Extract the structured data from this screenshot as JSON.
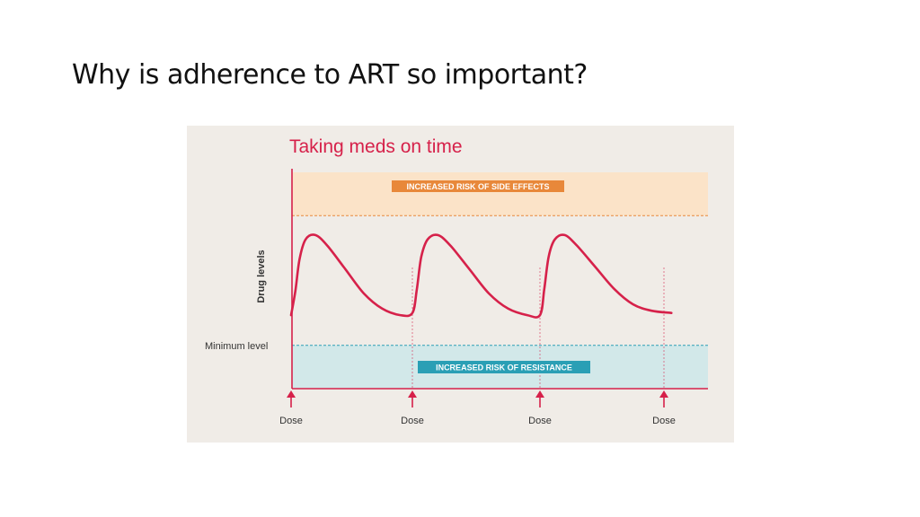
{
  "slide": {
    "title": "Why is adherence to ART so important?"
  },
  "chart_data": {
    "type": "line",
    "title": "Taking meds on time",
    "ylabel": "Drug levels",
    "xlabel": "",
    "dose_label": "Dose",
    "dose_times": [
      0,
      1,
      2,
      3
    ],
    "minimum_level_label": "Minimum level",
    "bands": {
      "side_effects": {
        "label": "INCREASED RISK OF SIDE EFFECTS",
        "color": "#e8883a",
        "fill": "#fbe3c8"
      },
      "resistance": {
        "label": "INCREASED RISK OF RESISTANCE",
        "color": "#2a9fb5",
        "fill": "#d2e8e9"
      }
    },
    "ylim": [
      0,
      1
    ],
    "levels": {
      "minimum": 0.2,
      "side_effect_threshold": 0.8
    },
    "series": [
      {
        "color": "#d6214a",
        "points": [
          [
            0.0,
            0.34
          ],
          [
            0.035,
            0.45
          ],
          [
            0.07,
            0.6
          ],
          [
            0.12,
            0.69
          ],
          [
            0.2,
            0.71
          ],
          [
            0.3,
            0.66
          ],
          [
            0.45,
            0.55
          ],
          [
            0.6,
            0.44
          ],
          [
            0.75,
            0.37
          ],
          [
            0.9,
            0.34
          ],
          [
            1.0,
            0.35
          ],
          [
            1.035,
            0.46
          ],
          [
            1.07,
            0.61
          ],
          [
            1.12,
            0.69
          ],
          [
            1.2,
            0.71
          ],
          [
            1.3,
            0.66
          ],
          [
            1.45,
            0.55
          ],
          [
            1.6,
            0.44
          ],
          [
            1.75,
            0.37
          ],
          [
            1.9,
            0.34
          ],
          [
            2.0,
            0.34
          ],
          [
            2.035,
            0.46
          ],
          [
            2.07,
            0.61
          ],
          [
            2.12,
            0.69
          ],
          [
            2.2,
            0.71
          ],
          [
            2.3,
            0.66
          ],
          [
            2.45,
            0.56
          ],
          [
            2.6,
            0.46
          ],
          [
            2.75,
            0.39
          ],
          [
            2.9,
            0.36
          ],
          [
            3.06,
            0.35
          ]
        ]
      }
    ],
    "colors": {
      "axis": "#d6214a",
      "text": "#333333",
      "title": "#d6214a",
      "minimum_line": "#2a9fb5"
    }
  }
}
